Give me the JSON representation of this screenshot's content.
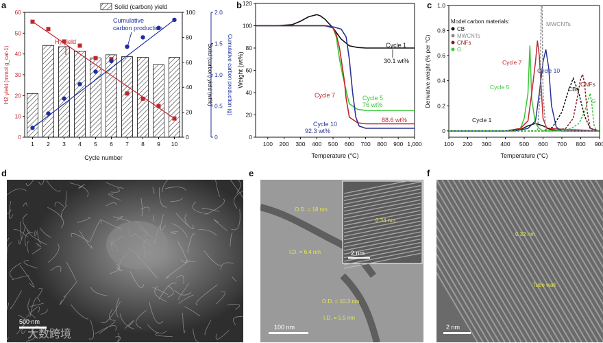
{
  "panels": {
    "a": "a",
    "b": "b",
    "c": "c",
    "d": "d",
    "e": "e",
    "f": "f"
  },
  "colors": {
    "h2": "#c0272d",
    "carbon": "#1f2fa0",
    "black": "#111111",
    "green": "#39c636",
    "navy": "#2a3394",
    "cnf": "#8b1a1a",
    "tem_yellow": "#f3e33a"
  },
  "chart_data": [
    {
      "type": "bar",
      "panel": "a",
      "categories": [
        "1",
        "2",
        "3",
        "4",
        "5",
        "6",
        "7",
        "8",
        "9",
        "10"
      ],
      "xlabel": "Cycle number",
      "series": [
        {
          "name": "Solid (carbon) yield",
          "axis": "y2",
          "values": [
            35,
            73.5,
            72.5,
            69,
            63.5,
            66,
            64.5,
            64,
            58,
            64
          ]
        },
        {
          "name": "H2 yield",
          "axis": "y1",
          "values": [
            55.5,
            52,
            46,
            44,
            38,
            37.5,
            21,
            18.5,
            15,
            9
          ]
        },
        {
          "name": "Cumulative carbon production",
          "axis": "y3",
          "values": [
            0.15,
            0.38,
            0.62,
            0.85,
            1.05,
            1.22,
            1.45,
            1.6,
            1.75,
            1.88
          ]
        }
      ],
      "y1": {
        "label": "H2 yield (mmol g_cat-1)",
        "ylim": [
          0,
          60
        ],
        "ticks": [
          "0",
          "10",
          "20",
          "30",
          "40",
          "50",
          "60"
        ]
      },
      "y2": {
        "label": "Solid (carbon) yield (wt%)",
        "ylim": [
          0,
          100
        ],
        "ticks": [
          "0",
          "20",
          "40",
          "60",
          "80",
          "100"
        ]
      },
      "y3": {
        "label": "Cumulative carbon production (g)",
        "ylim": [
          0,
          2.0
        ],
        "ticks": [
          "0",
          "0.5",
          "1.0",
          "1.5",
          "2.0"
        ]
      },
      "annotations": {
        "legend": "Solid (carbon) yield",
        "h2": "H₂ yield",
        "cum1": "Cumulative",
        "cum2": "carbon production"
      }
    },
    {
      "type": "line",
      "panel": "b",
      "xlabel": "Temperature (°C)",
      "ylabel": "Weight (wt%)",
      "xlim": [
        25,
        1000
      ],
      "ylim": [
        0,
        120
      ],
      "xticks": [
        "100",
        "200",
        "300",
        "400",
        "500",
        "600",
        "700",
        "800",
        "900",
        "1,000"
      ],
      "yticks": [
        "0",
        "20",
        "40",
        "60",
        "80",
        "100",
        "120"
      ],
      "series": [
        {
          "name": "Cycle 1",
          "x": [
            25,
            150,
            250,
            300,
            350,
            400,
            420,
            450,
            500,
            550,
            600,
            650,
            700,
            800,
            900,
            1000
          ],
          "y": [
            100,
            100,
            101,
            104,
            108,
            110,
            109,
            106,
            98,
            88,
            82,
            80.5,
            80,
            80,
            80,
            80
          ]
        },
        {
          "name": "Cycle 5",
          "x": [
            25,
            300,
            400,
            450,
            480,
            500,
            520,
            540,
            560,
            580,
            600,
            650,
            700,
            800,
            900,
            1000
          ],
          "y": [
            100,
            100,
            100,
            100,
            99.5,
            98,
            90,
            70,
            55,
            42,
            30,
            25,
            24,
            24,
            24,
            24
          ]
        },
        {
          "name": "Cycle 7",
          "x": [
            25,
            300,
            400,
            450,
            500,
            520,
            540,
            560,
            570,
            580,
            600,
            650,
            700,
            800,
            900,
            1000
          ],
          "y": [
            100,
            100,
            100,
            100,
            98,
            92,
            80,
            60,
            50,
            35,
            18,
            13,
            12,
            12,
            12,
            12
          ]
        },
        {
          "name": "Cycle 10",
          "x": [
            25,
            300,
            400,
            450,
            500,
            550,
            580,
            600,
            620,
            640,
            660,
            700,
            800,
            900,
            1000
          ],
          "y": [
            100,
            100,
            100,
            100,
            99,
            97,
            90,
            70,
            40,
            18,
            10,
            8,
            8,
            8,
            8
          ]
        }
      ],
      "annotations": {
        "c1": "Cycle 1",
        "c1v": "30.1 wt%",
        "c5": "Cycle 5",
        "c5v": "76 wt%",
        "c7": "Cycle 7",
        "c7v": "88.6 wt%",
        "c10": "Cycle 10",
        "c10v": "92.3 wt%"
      }
    },
    {
      "type": "line",
      "panel": "c",
      "xlabel": "Temperature (°C)",
      "ylabel": "Derivative weight (% per °C)",
      "xlim": [
        100,
        900
      ],
      "ylim": [
        -0.05,
        1.0
      ],
      "xticks": [
        "100",
        "200",
        "300",
        "400",
        "500",
        "600",
        "700",
        "800",
        "900"
      ],
      "yticks": [
        "0",
        "0.2",
        "0.4",
        "0.6",
        "0.8",
        "1.0"
      ],
      "legend_title": "Model carbon materials:",
      "legend": [
        {
          "label": "CB",
          "color": "#111111"
        },
        {
          "label": "MWCNTs",
          "color": "#8a8a8a"
        },
        {
          "label": "CNFs",
          "color": "#8b1a1a"
        },
        {
          "label": "G",
          "color": "#39c636"
        }
      ],
      "series": [
        {
          "name": "Cycle 1",
          "x": [
            100,
            300,
            400,
            480,
            520,
            560,
            600,
            640,
            700,
            900
          ],
          "y": [
            0,
            0,
            0,
            0.01,
            0.04,
            0.06,
            0.04,
            0.01,
            0,
            0
          ]
        },
        {
          "name": "Cycle 5",
          "x": [
            100,
            400,
            480,
            500,
            520,
            530,
            540,
            560,
            580,
            600,
            900
          ],
          "y": [
            0,
            0,
            0.02,
            0.1,
            0.3,
            0.68,
            0.25,
            0.06,
            0.02,
            0,
            0
          ]
        },
        {
          "name": "Cycle 7",
          "x": [
            100,
            400,
            480,
            520,
            540,
            560,
            570,
            580,
            600,
            620,
            900
          ],
          "y": [
            0,
            0,
            0.02,
            0.08,
            0.3,
            0.55,
            0.72,
            0.6,
            0.1,
            0.02,
            0
          ]
        },
        {
          "name": "Cycle 10",
          "x": [
            100,
            450,
            520,
            560,
            580,
            600,
            615,
            630,
            645,
            670,
            700,
            900
          ],
          "y": [
            0,
            0,
            0.02,
            0.08,
            0.3,
            0.55,
            0.65,
            0.5,
            0.2,
            0.03,
            0,
            0
          ]
        },
        {
          "name": "CB",
          "x": [
            100,
            600,
            650,
            700,
            730,
            760,
            790,
            820,
            850,
            900
          ],
          "y": [
            0,
            0,
            0.03,
            0.15,
            0.3,
            0.42,
            0.3,
            0.12,
            0.02,
            0
          ]
        },
        {
          "name": "MWCNTs",
          "x": [
            100,
            570,
            585,
            590,
            595,
            600,
            615,
            900
          ],
          "y": [
            0,
            0,
            0.3,
            1.05,
            1.05,
            0.3,
            0,
            0
          ]
        },
        {
          "name": "CNFs",
          "x": [
            100,
            650,
            720,
            760,
            780,
            800,
            810,
            820,
            835,
            850,
            900
          ],
          "y": [
            0,
            0,
            0.02,
            0.1,
            0.25,
            0.42,
            0.45,
            0.38,
            0.15,
            0.02,
            0
          ]
        },
        {
          "name": "G",
          "x": [
            100,
            700,
            750,
            790,
            820,
            840,
            850,
            860,
            870,
            880,
            900
          ],
          "y": [
            0,
            0,
            0.02,
            0.06,
            0.15,
            0.25,
            0.3,
            0.2,
            0.05,
            0.01,
            0
          ]
        }
      ],
      "annotations": {
        "c1": "Cycle 1",
        "c5": "Cycle 5",
        "c7": "Cycle 7",
        "c10": "Cycle 10",
        "cbs": "CBs",
        "cnfs": "CNFs",
        "g": "G",
        "mwcnts": "MWCNTs"
      }
    }
  ],
  "images": {
    "d": {
      "scale": "500 nm"
    },
    "e": {
      "scale_main": "100 nm",
      "scale_inset": "2 nm",
      "od1": "O.D. = 18 nm",
      "id1": "I.D. = 6.4 nm",
      "od2": "O.D. = 10.3 nm",
      "id2": "I.D. = 5.5 nm",
      "spacing": "0.34 nm"
    },
    "f": {
      "scale": "2 nm",
      "spacing": "0.32 nm",
      "wall": "Tube wall"
    }
  },
  "watermark": "大数跨境"
}
